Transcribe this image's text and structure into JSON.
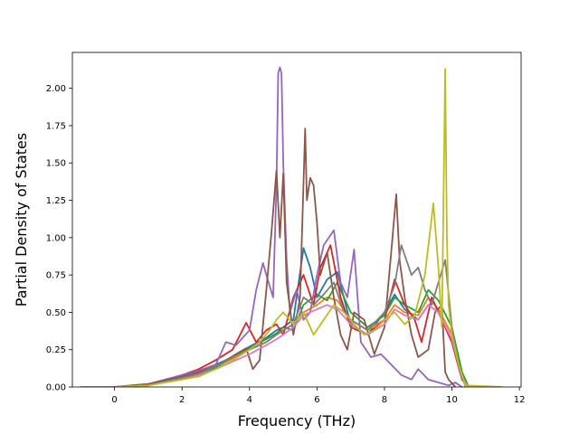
{
  "chart_data": {
    "type": "line",
    "title": "",
    "xlabel": "Frequency (THz)",
    "ylabel": "Partial Density of States",
    "xlim": [
      -1.25,
      12.05
    ],
    "ylim": [
      0,
      2.24
    ],
    "xticks": [
      0,
      2,
      4,
      6,
      8,
      10,
      12
    ],
    "xtick_labels": [
      "0",
      "2",
      "4",
      "6",
      "8",
      "10",
      "12"
    ],
    "yticks": [
      0,
      0.25,
      0.5,
      0.75,
      1.0,
      1.25,
      1.5,
      1.75,
      2.0
    ],
    "ytick_labels": [
      "0.00",
      "0.25",
      "0.50",
      "0.75",
      "1.00",
      "1.25",
      "1.50",
      "1.75",
      "2.00"
    ],
    "grid": false,
    "legend": "none",
    "series": [
      {
        "color": "#1f77b4",
        "x": [
          -1,
          0,
          1,
          2,
          2.5,
          3,
          3.5,
          4,
          4.5,
          4.8,
          5.0,
          5.3,
          5.6,
          5.8,
          6.0,
          6.3,
          6.6,
          7.0,
          7.5,
          8.0,
          8.3,
          8.6,
          9.0,
          9.3,
          9.6,
          10.0,
          10.3,
          10.5
        ],
        "y": [
          0,
          0,
          0.01,
          0.07,
          0.1,
          0.15,
          0.2,
          0.27,
          0.33,
          0.38,
          0.4,
          0.45,
          0.93,
          0.8,
          0.6,
          0.72,
          0.77,
          0.42,
          0.35,
          0.5,
          0.62,
          0.52,
          0.45,
          0.55,
          0.5,
          0.3,
          0.05,
          0
        ]
      },
      {
        "color": "#ff7f0e",
        "x": [
          -1,
          0,
          1,
          2,
          2.5,
          3,
          3.5,
          4,
          4.5,
          4.8,
          5.0,
          5.3,
          5.6,
          6.0,
          6.3,
          6.6,
          7.0,
          7.5,
          8.0,
          8.3,
          8.6,
          9.0,
          9.3,
          9.6,
          10.0,
          10.3,
          10.5
        ],
        "y": [
          0,
          0,
          0.01,
          0.06,
          0.09,
          0.14,
          0.19,
          0.25,
          0.3,
          0.35,
          0.38,
          0.42,
          0.5,
          0.55,
          0.6,
          0.58,
          0.45,
          0.38,
          0.45,
          0.55,
          0.5,
          0.48,
          0.6,
          0.52,
          0.35,
          0.08,
          0
        ]
      },
      {
        "color": "#2ca02c",
        "x": [
          -1,
          0,
          1,
          2,
          2.5,
          3,
          3.5,
          4,
          4.5,
          4.8,
          5.0,
          5.3,
          5.6,
          6.0,
          6.3,
          6.6,
          7.0,
          7.5,
          8.0,
          8.3,
          8.6,
          9.0,
          9.3,
          9.6,
          10.0,
          10.3,
          10.5
        ],
        "y": [
          0,
          0,
          0.01,
          0.06,
          0.08,
          0.13,
          0.2,
          0.26,
          0.32,
          0.36,
          0.4,
          0.38,
          0.55,
          0.62,
          0.58,
          0.7,
          0.5,
          0.4,
          0.48,
          0.6,
          0.55,
          0.5,
          0.65,
          0.58,
          0.4,
          0.1,
          0
        ]
      },
      {
        "color": "#d62728",
        "x": [
          -1,
          0,
          1,
          2,
          2.5,
          3,
          3.5,
          3.9,
          4.2,
          4.5,
          4.8,
          5.0,
          5.3,
          5.6,
          5.9,
          6.1,
          6.4,
          6.7,
          7.0,
          7.5,
          8.0,
          8.3,
          8.6,
          8.9,
          9.1,
          9.4,
          9.7,
          10.0,
          10.3,
          10.5
        ],
        "y": [
          0,
          0,
          0.01,
          0.08,
          0.12,
          0.18,
          0.25,
          0.43,
          0.3,
          0.38,
          0.42,
          0.35,
          0.6,
          0.75,
          0.55,
          0.8,
          0.95,
          0.6,
          0.4,
          0.35,
          0.45,
          0.72,
          0.55,
          0.45,
          0.3,
          0.6,
          0.45,
          0.3,
          0.05,
          0
        ]
      },
      {
        "color": "#9467bd",
        "x": [
          -1,
          0,
          1,
          2,
          2.5,
          3,
          3.3,
          3.6,
          4.0,
          4.2,
          4.4,
          4.5,
          4.7,
          4.8,
          4.85,
          4.9,
          4.95,
          5.0,
          5.1,
          5.2,
          5.4,
          5.6,
          5.8,
          6.0,
          6.2,
          6.5,
          6.7,
          6.9,
          7.1,
          7.3,
          7.6,
          7.9,
          8.2,
          8.5,
          8.8,
          9.0,
          9.3,
          9.6,
          9.9,
          10.1,
          10.3
        ],
        "y": [
          0,
          0,
          0.02,
          0.08,
          0.11,
          0.15,
          0.3,
          0.28,
          0.38,
          0.65,
          0.83,
          0.75,
          0.6,
          1.35,
          2.1,
          2.14,
          2.1,
          1.5,
          0.85,
          0.5,
          0.65,
          0.45,
          0.5,
          0.75,
          0.95,
          1.05,
          0.7,
          0.6,
          0.92,
          0.3,
          0.2,
          0.22,
          0.15,
          0.08,
          0.05,
          0.12,
          0.05,
          0.03,
          0.01,
          0.03,
          0
        ]
      },
      {
        "color": "#8c564b",
        "x": [
          -1,
          0,
          1,
          2,
          2.5,
          3,
          3.3,
          3.6,
          3.9,
          4.1,
          4.3,
          4.5,
          4.65,
          4.8,
          4.9,
          5.0,
          5.1,
          5.3,
          5.5,
          5.65,
          5.7,
          5.8,
          5.9,
          6.0,
          6.1,
          6.3,
          6.5,
          6.7,
          6.9,
          7.1,
          7.4,
          7.7,
          8.0,
          8.2,
          8.35,
          8.45,
          8.6,
          8.8,
          9.0,
          9.3,
          9.5,
          9.7,
          9.8,
          9.9,
          10.1
        ],
        "y": [
          0,
          0,
          0.02,
          0.07,
          0.1,
          0.14,
          0.18,
          0.22,
          0.26,
          0.12,
          0.18,
          0.65,
          1.03,
          1.45,
          1.0,
          1.43,
          0.7,
          0.35,
          0.6,
          1.73,
          1.25,
          1.4,
          1.35,
          1.1,
          0.75,
          0.9,
          0.6,
          0.35,
          0.25,
          0.5,
          0.45,
          0.22,
          0.4,
          0.9,
          1.29,
          0.85,
          0.6,
          0.35,
          0.2,
          0.25,
          0.5,
          0.55,
          0.1,
          0.05,
          0
        ]
      },
      {
        "color": "#e377c2",
        "x": [
          -1,
          0,
          1,
          2,
          2.5,
          3,
          3.5,
          4,
          4.5,
          4.8,
          5.0,
          5.3,
          5.6,
          6.0,
          6.3,
          6.6,
          7.0,
          7.5,
          8.0,
          8.3,
          8.6,
          9.0,
          9.3,
          9.6,
          10.0,
          10.3,
          10.5
        ],
        "y": [
          0,
          0,
          0.01,
          0.05,
          0.08,
          0.12,
          0.17,
          0.22,
          0.28,
          0.32,
          0.35,
          0.4,
          0.48,
          0.52,
          0.55,
          0.52,
          0.42,
          0.35,
          0.42,
          0.52,
          0.48,
          0.45,
          0.55,
          0.5,
          0.32,
          0.06,
          0
        ]
      },
      {
        "color": "#7f7f7f",
        "x": [
          -1,
          0,
          1,
          2,
          2.5,
          3,
          3.5,
          4,
          4.5,
          4.8,
          5.0,
          5.3,
          5.6,
          5.9,
          6.2,
          6.5,
          6.8,
          7.0,
          7.5,
          8.0,
          8.3,
          8.5,
          8.8,
          9.0,
          9.2,
          9.4,
          9.6,
          9.8,
          10.0,
          10.2,
          10.4
        ],
        "y": [
          0,
          0,
          0.01,
          0.06,
          0.09,
          0.14,
          0.2,
          0.25,
          0.3,
          0.35,
          0.38,
          0.42,
          0.6,
          0.55,
          0.62,
          0.7,
          0.5,
          0.45,
          0.38,
          0.5,
          0.68,
          0.95,
          0.75,
          0.8,
          0.65,
          0.55,
          0.7,
          0.85,
          0.4,
          0.15,
          0
        ]
      },
      {
        "color": "#bcbd22",
        "x": [
          -1,
          0,
          1,
          2,
          2.5,
          3,
          3.5,
          4,
          4.3,
          4.6,
          4.8,
          5.0,
          5.3,
          5.6,
          5.9,
          6.2,
          6.5,
          6.8,
          7.1,
          7.4,
          7.7,
          8.0,
          8.3,
          8.6,
          8.9,
          9.2,
          9.45,
          9.6,
          9.7,
          9.8,
          9.85,
          9.9,
          10.0,
          10.2,
          10.4,
          11.5
        ],
        "y": [
          0,
          0,
          0.01,
          0.05,
          0.07,
          0.12,
          0.18,
          0.25,
          0.3,
          0.38,
          0.45,
          0.5,
          0.42,
          0.5,
          0.35,
          0.45,
          0.55,
          0.5,
          0.42,
          0.35,
          0.38,
          0.45,
          0.5,
          0.42,
          0.48,
          0.75,
          1.23,
          0.8,
          0.4,
          2.13,
          1.0,
          0.55,
          0.35,
          0.15,
          0.01,
          0
        ]
      }
    ]
  }
}
